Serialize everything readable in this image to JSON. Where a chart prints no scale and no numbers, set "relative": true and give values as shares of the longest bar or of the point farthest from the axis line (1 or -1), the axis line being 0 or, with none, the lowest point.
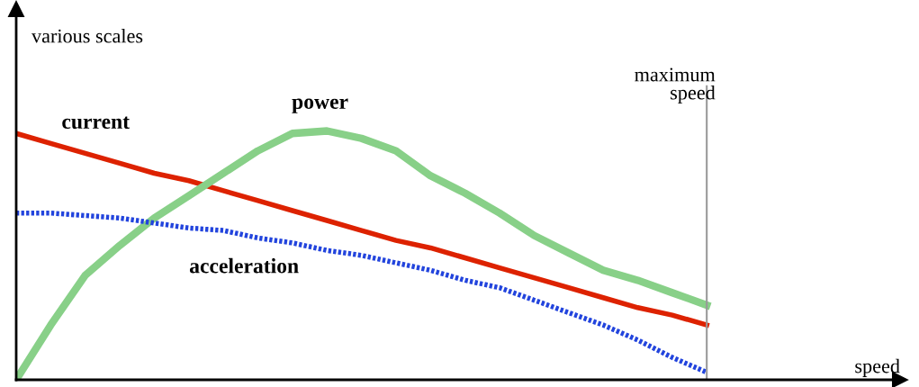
{
  "chart_data": {
    "type": "line",
    "relative": true,
    "annotations": [
      "speed"
    ],
    "ylabel": "various scales",
    "categories": [
      null,
      null,
      null,
      null,
      null,
      null,
      null,
      null,
      null,
      null,
      null,
      null,
      null,
      null,
      null,
      null,
      null,
      null,
      null,
      null,
      null
    ],
    "series": [
      {
        "name": "current",
        "color": "#dd2200",
        "line_style": "solid",
        "values": [
          0.99,
          0.95,
          0.91,
          0.87,
          0.83,
          0.8,
          0.76,
          0.72,
          0.68,
          0.64,
          0.6,
          0.56,
          0.53,
          0.49,
          0.45,
          0.41,
          0.37,
          0.33,
          0.29,
          0.26,
          0.22
        ]
      },
      {
        "name": "power",
        "color": "#88d088",
        "line_style": "solid",
        "values": [
          0,
          0.22,
          0.42,
          0.54,
          0.65,
          0.74,
          0.83,
          0.92,
          0.99,
          1.0,
          0.97,
          0.92,
          0.82,
          0.75,
          0.67,
          0.58,
          0.51,
          0.44,
          0.4,
          0.35,
          0.3
        ]
      },
      {
        "name": "acceleration",
        "color": "#2244dd",
        "line_style": "dotted",
        "values": [
          0.67,
          0.67,
          0.66,
          0.65,
          0.63,
          0.61,
          0.6,
          0.57,
          0.55,
          0.52,
          0.5,
          0.47,
          0.44,
          0.4,
          0.37,
          0.32,
          0.27,
          0.22,
          0.16,
          0.09,
          0.03
        ]
      }
    ],
    "ref_lines": [
      {
        "axis": "x",
        "label": "maximum speed",
        "color": "#999999"
      }
    ],
    "legend": false
  }
}
